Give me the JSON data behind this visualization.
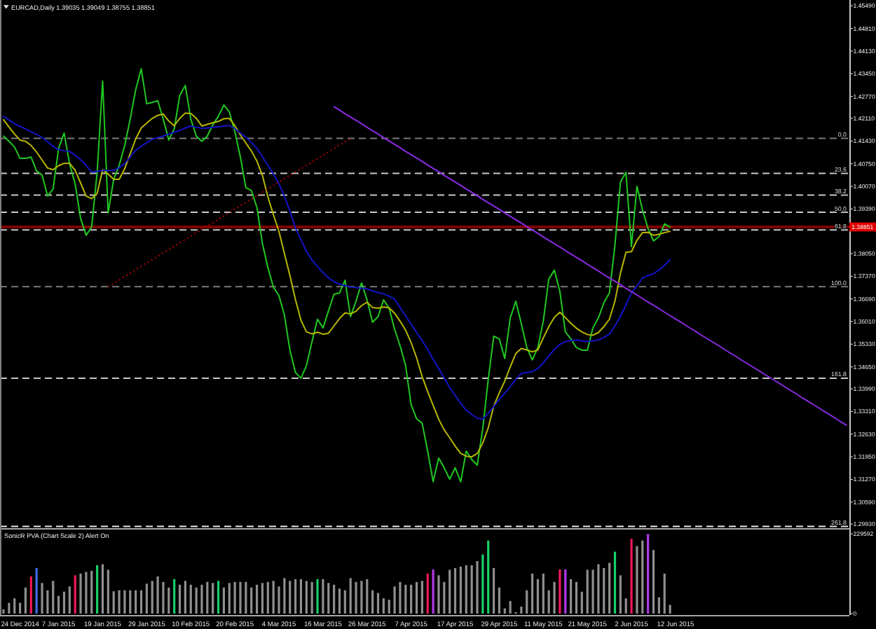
{
  "chart_data": [
    {
      "type": "line",
      "title": "EURCAD,Daily 1.39035 1.39049 1.38755 1.38851",
      "tick_labels": "y",
      "categories": [
        null,
        null,
        null,
        null,
        null,
        null,
        null,
        null,
        null,
        null,
        null,
        null,
        null,
        null,
        null,
        null,
        null,
        null,
        null,
        null,
        null,
        null,
        null,
        null,
        null,
        null,
        null,
        null,
        null,
        null,
        null,
        null,
        null,
        null,
        null,
        null,
        null,
        null,
        null,
        null,
        null,
        null,
        null,
        null,
        null,
        null,
        null,
        null,
        null,
        null,
        null,
        null,
        null,
        null,
        null,
        null,
        null,
        null,
        null,
        null,
        null,
        null,
        null,
        null,
        null,
        null,
        null,
        null,
        null,
        null,
        null,
        null,
        null,
        null,
        null,
        null,
        null,
        null,
        null,
        null,
        null,
        null,
        null,
        null,
        null,
        null,
        null,
        null,
        null,
        null,
        null,
        null,
        null,
        null,
        null,
        null,
        null,
        null,
        null,
        null,
        null,
        null,
        null,
        null,
        null,
        null,
        null,
        null,
        null,
        null,
        null,
        null,
        null,
        null,
        null,
        null,
        null,
        null,
        null,
        null,
        null,
        null,
        null,
        null,
        null,
        null,
        null,
        null,
        null,
        null,
        null,
        null,
        null,
        null,
        null,
        null,
        null,
        null,
        null,
        null,
        null,
        null,
        null,
        null,
        null,
        null,
        null,
        null,
        null,
        null,
        null,
        null,
        null,
        null
      ],
      "series": [
        {
          "color": "#20c820",
          "values": [
            1.4158,
            1.4142,
            1.4125,
            1.4091,
            1.4091,
            1.4095,
            1.4053,
            1.4041,
            1.3978,
            1.3999,
            1.4121,
            1.4167,
            1.4074,
            1.4015,
            1.391,
            1.386,
            1.3885,
            1.4049,
            1.4323,
            1.3927,
            1.4028,
            1.407,
            1.4129,
            1.4209,
            1.4297,
            1.436,
            1.4255,
            1.4259,
            1.4264,
            1.4209,
            1.4146,
            1.418,
            1.428,
            1.431,
            1.4209,
            1.4158,
            1.4142,
            1.4158,
            1.4192,
            1.4217,
            1.4251,
            1.423,
            1.4171,
            1.4095,
            1.4003,
            1.3994,
            1.3944,
            1.3835,
            1.3763,
            1.3704,
            1.3679,
            1.362,
            1.3515,
            1.3448,
            1.3431,
            1.3469,
            1.354,
            1.3608,
            1.3582,
            1.3633,
            1.3683,
            1.3687,
            1.3725,
            1.3616,
            1.3662,
            1.3717,
            1.3666,
            1.3599,
            1.3616,
            1.3666,
            1.3641,
            1.3578,
            1.3528,
            1.3469,
            1.3351,
            1.3309,
            1.3296,
            1.3212,
            1.312,
            1.3191,
            1.3162,
            1.3128,
            1.3162,
            1.312,
            1.3212,
            1.3187,
            1.317,
            1.3279,
            1.3427,
            1.3557,
            1.3549,
            1.349,
            1.3612,
            1.3662,
            1.3595,
            1.3523,
            1.3486,
            1.3523,
            1.3603,
            1.3729,
            1.3755,
            1.3692,
            1.357,
            1.3549,
            1.3523,
            1.3515,
            1.3515,
            1.3582,
            1.3612,
            1.3658,
            1.3687,
            1.383,
            1.402,
            1.4049,
            1.3826,
            1.4007,
            1.3936,
            1.3881,
            1.3843,
            1.3856,
            1.3894,
            1.3885,
            null,
            null,
            null,
            null,
            null,
            null,
            null,
            null,
            null,
            null,
            null,
            null,
            null,
            null,
            null,
            null,
            null,
            null,
            null,
            null,
            null,
            null,
            null,
            null,
            null,
            null,
            null,
            null,
            null,
            null,
            null,
            null
          ]
        },
        {
          "color": "#b8b800",
          "values": [
            1.4207,
            1.4185,
            1.4164,
            1.4146,
            1.4142,
            1.413,
            1.411,
            1.4086,
            1.4062,
            1.4057,
            1.4069,
            1.4076,
            1.4076,
            1.4055,
            1.4017,
            1.3978,
            1.397,
            1.3986,
            1.4057,
            1.4044,
            1.4028,
            1.4028,
            1.406,
            1.4105,
            1.4149,
            1.4182,
            1.4197,
            1.4211,
            1.422,
            1.4224,
            1.4203,
            1.4189,
            1.4211,
            1.4227,
            1.4226,
            1.4211,
            1.4188,
            1.4193,
            1.4198,
            1.4202,
            1.421,
            1.4211,
            1.4189,
            1.4161,
            1.4137,
            1.4113,
            1.4083,
            1.404,
            1.3975,
            1.3922,
            1.3872,
            1.3805,
            1.3739,
            1.3667,
            1.3605,
            1.357,
            1.3564,
            1.3569,
            1.3563,
            1.3566,
            1.3588,
            1.361,
            1.3627,
            1.3624,
            1.3632,
            1.3649,
            1.3659,
            1.3643,
            1.3641,
            1.3645,
            1.3642,
            1.3626,
            1.3602,
            1.3575,
            1.3538,
            1.3492,
            1.3436,
            1.3391,
            1.3349,
            1.3308,
            1.3276,
            1.3252,
            1.3227,
            1.3205,
            1.3197,
            1.3195,
            1.3205,
            1.3236,
            1.3282,
            1.3347,
            1.3387,
            1.3422,
            1.3465,
            1.3505,
            1.352,
            1.3516,
            1.351,
            1.3516,
            1.3552,
            1.3586,
            1.3614,
            1.3629,
            1.3613,
            1.3596,
            1.3581,
            1.357,
            1.3562,
            1.356,
            1.3568,
            1.3586,
            1.3608,
            1.3662,
            1.3746,
            1.3809,
            1.3811,
            1.3845,
            1.3868,
            1.3869,
            1.386,
            1.3863,
            1.3868,
            1.3872,
            null,
            null,
            null,
            null,
            null,
            null,
            null,
            null,
            null,
            null,
            null,
            null,
            null,
            null,
            null,
            null,
            null,
            null,
            null,
            null,
            null,
            null,
            null,
            null,
            null,
            null,
            null,
            null,
            null,
            null,
            null,
            null
          ]
        },
        {
          "color": "#1414c8",
          "values": [
            1.4217,
            1.4206,
            1.4195,
            1.4187,
            1.4179,
            1.4171,
            1.4163,
            1.4154,
            1.4141,
            1.4127,
            1.4117,
            1.4114,
            1.4112,
            1.4101,
            1.4087,
            1.407,
            1.405,
            1.4052,
            1.4055,
            1.4055,
            1.4055,
            1.4063,
            1.4075,
            1.4095,
            1.4115,
            1.4127,
            1.4138,
            1.4148,
            1.4153,
            1.4158,
            1.4164,
            1.4169,
            1.4175,
            1.4182,
            1.4188,
            1.4185,
            1.4181,
            1.4182,
            1.4184,
            1.4186,
            1.4188,
            1.419,
            1.418,
            1.4167,
            1.4155,
            1.4139,
            1.4121,
            1.4096,
            1.407,
            1.4044,
            1.4015,
            1.3977,
            1.3932,
            1.3882,
            1.3847,
            1.3811,
            1.3786,
            1.3766,
            1.3749,
            1.3732,
            1.3721,
            1.3713,
            1.3709,
            1.3705,
            1.3703,
            1.3701,
            1.3699,
            1.3693,
            1.3688,
            1.3684,
            1.3677,
            1.3668,
            1.3643,
            1.3618,
            1.3593,
            1.3568,
            1.3544,
            1.3517,
            1.3488,
            1.346,
            1.3432,
            1.3403,
            1.3379,
            1.3356,
            1.3335,
            1.3322,
            1.3311,
            1.3308,
            1.3326,
            1.3346,
            1.3367,
            1.3386,
            1.3406,
            1.3427,
            1.3445,
            1.3448,
            1.3451,
            1.346,
            1.3477,
            1.3498,
            1.3517,
            1.3532,
            1.3541,
            1.3544,
            1.3546,
            1.3543,
            1.3541,
            1.3543,
            1.3546,
            1.3553,
            1.3564,
            1.3588,
            1.3617,
            1.3651,
            1.3687,
            1.3708,
            1.3732,
            1.3739,
            1.3745,
            1.3756,
            1.377,
            1.3787,
            null,
            null,
            null,
            null,
            null,
            null,
            null,
            null,
            null,
            null,
            null,
            null,
            null,
            null,
            null,
            null,
            null,
            null,
            null,
            null,
            null,
            null,
            null,
            null,
            null,
            null,
            null,
            null,
            null,
            null,
            null,
            null
          ]
        },
        {
          "color": "#8a2be2",
          "values": [
            null,
            null,
            null,
            null,
            null,
            null,
            null,
            null,
            null,
            null,
            null,
            null,
            null,
            null,
            null,
            null,
            null,
            null,
            null,
            null,
            null,
            null,
            null,
            null,
            null,
            null,
            null,
            null,
            null,
            null,
            null,
            null,
            null,
            null,
            null,
            null,
            null,
            null,
            null,
            null,
            null,
            null,
            null,
            null,
            null,
            null,
            null,
            null,
            null,
            null,
            null,
            null,
            null,
            null,
            null,
            null,
            null,
            null,
            null,
            null,
            1.4246,
            1.4236,
            1.4225,
            1.4215,
            1.4205,
            1.4195,
            1.4184,
            1.4174,
            1.4164,
            1.4153,
            1.4143,
            1.4133,
            1.4123,
            1.4112,
            1.4102,
            1.4092,
            1.4082,
            1.4071,
            1.4061,
            1.4051,
            1.404,
            1.403,
            1.402,
            1.401,
            1.3999,
            1.3989,
            1.3979,
            1.3968,
            1.3958,
            1.3948,
            1.3938,
            1.3927,
            1.3917,
            1.3907,
            1.3897,
            1.3886,
            1.3876,
            1.3866,
            1.3855,
            1.3845,
            1.3835,
            1.3825,
            1.3814,
            1.3804,
            1.3794,
            1.3784,
            1.3773,
            1.3763,
            1.3753,
            1.3742,
            1.3732,
            1.3722,
            1.3712,
            1.3701,
            1.3691,
            1.3681,
            1.367,
            1.366,
            1.365,
            1.364,
            1.3629,
            1.3619,
            1.3609,
            1.3599,
            1.3588,
            1.3578,
            1.3568,
            1.3557,
            1.3547,
            1.3537,
            1.3527,
            1.3516,
            1.3506,
            1.3496,
            1.3485,
            1.3475,
            1.3465,
            1.3455,
            1.3444,
            1.3434,
            1.3424,
            1.3414,
            1.3403,
            1.3393,
            1.3383,
            1.3372,
            1.3362,
            1.3352,
            1.3342,
            1.3331,
            1.3321,
            1.3311,
            1.33,
            1.329
          ]
        },
        {
          "color": "#b00000",
          "line_style": "dotted",
          "values": [
            null,
            null,
            null,
            null,
            null,
            null,
            null,
            null,
            null,
            null,
            null,
            null,
            null,
            null,
            null,
            null,
            null,
            null,
            null,
            1.3706,
            1.3716,
            1.3726,
            1.3736,
            1.3746,
            1.3757,
            1.3767,
            1.3777,
            1.3787,
            1.3797,
            1.3807,
            1.3817,
            1.3827,
            1.3837,
            1.3848,
            1.3858,
            1.3868,
            1.3878,
            1.3888,
            1.3898,
            1.3908,
            1.3918,
            1.3929,
            1.3939,
            1.3949,
            1.3959,
            1.3969,
            1.3979,
            1.3989,
            1.3999,
            1.4009,
            1.402,
            1.403,
            1.404,
            1.405,
            1.406,
            1.407,
            1.408,
            1.409,
            1.41,
            1.4111,
            1.4121,
            1.4131,
            1.4141,
            1.4151,
            null,
            null,
            null,
            null,
            null,
            null,
            null,
            null,
            null,
            null,
            null,
            null,
            null,
            null,
            null,
            null,
            null,
            null,
            null,
            null,
            null,
            null,
            null,
            null,
            null,
            null,
            null,
            null,
            null,
            null,
            null,
            null,
            null,
            null,
            null,
            null,
            null,
            null,
            null,
            null,
            null,
            null,
            null,
            null,
            null,
            null,
            null,
            null,
            null,
            null,
            null,
            null,
            null,
            null,
            null,
            null,
            null,
            null,
            null,
            null,
            null,
            null,
            null,
            null,
            null,
            null,
            null,
            null,
            null,
            null,
            null,
            null,
            null,
            null,
            null,
            null,
            null,
            null,
            null,
            null,
            null,
            null,
            null,
            null,
            null,
            null,
            null,
            null,
            null,
            null
          ]
        }
      ],
      "ylim": [
        1.2985,
        1.4558
      ],
      "yticks": [
        {
          "value": 1.4549,
          "label": "1.45490"
        },
        {
          "value": 1.4481,
          "label": "1.44810"
        },
        {
          "value": 1.4413,
          "label": "1.44130"
        },
        {
          "value": 1.4345,
          "label": "1.43450"
        },
        {
          "value": 1.4277,
          "label": "1.42770"
        },
        {
          "value": 1.4211,
          "label": "1.42110"
        },
        {
          "value": 1.4143,
          "label": "1.41430"
        },
        {
          "value": 1.4075,
          "label": "1.40750"
        },
        {
          "value": 1.4007,
          "label": "1.40070"
        },
        {
          "value": 1.3939,
          "label": "1.39390"
        },
        {
          "value": 1.3805,
          "label": "1.38050"
        },
        {
          "value": 1.3737,
          "label": "1.37370"
        },
        {
          "value": 1.3669,
          "label": "1.36690"
        },
        {
          "value": 1.3601,
          "label": "1.36010"
        },
        {
          "value": 1.3533,
          "label": "1.35330"
        },
        {
          "value": 1.3465,
          "label": "1.34650"
        },
        {
          "value": 1.3399,
          "label": "1.33990"
        },
        {
          "value": 1.3331,
          "label": "1.33310"
        },
        {
          "value": 1.3263,
          "label": "1.32630"
        },
        {
          "value": 1.3195,
          "label": "1.31950"
        },
        {
          "value": 1.3127,
          "label": "1.31270"
        },
        {
          "value": 1.3059,
          "label": "1.30590"
        },
        {
          "value": 1.2993,
          "label": "1.29930"
        }
      ],
      "ref_lines": [
        {
          "axis": "y",
          "value": 1.4151,
          "color": "#7a7a7a",
          "line_style": "dashed"
        },
        {
          "axis": "y",
          "value": 1.4046,
          "color": "#c8c8c8",
          "line_style": "dashed"
        },
        {
          "axis": "y",
          "value": 1.3981,
          "color": "#c8c8c8",
          "line_style": "dashed"
        },
        {
          "axis": "y",
          "value": 1.3929,
          "color": "#c8c8c8",
          "line_style": "dashed"
        },
        {
          "axis": "y",
          "value": 1.3876,
          "color": "#c8c8c8",
          "line_style": "dashed"
        },
        {
          "axis": "y",
          "value": 1.3706,
          "color": "#7a7a7a",
          "line_style": "dashed"
        },
        {
          "axis": "y",
          "value": 1.3431,
          "color": "#c8c8c8",
          "line_style": "dashed"
        },
        {
          "axis": "y",
          "value": 1.2986,
          "color": "#e8e8e8",
          "line_style": "dashed"
        },
        {
          "axis": "y",
          "value": 1.38851,
          "label": "1.38851",
          "color": "#800000",
          "line_style": "solid"
        }
      ],
      "annotations": [
        {
          "text": "0.0",
          "y": 1.4151
        },
        {
          "text": "23.6",
          "y": 1.4046
        },
        {
          "text": "38.2",
          "y": 1.3981
        },
        {
          "text": "50.0",
          "y": 1.3929
        },
        {
          "text": "61.8",
          "y": 1.3876
        },
        {
          "text": "100.0",
          "y": 1.3706
        },
        {
          "text": "161.8",
          "y": 1.3431
        },
        {
          "text": "261.8",
          "y": 1.2986
        }
      ]
    },
    {
      "type": "bar",
      "title": "SonicR PVA (Chart Scale 2) Alert On",
      "categories": [
        null,
        null,
        null,
        "24 Dec 2014",
        null,
        null,
        null,
        null,
        null,
        null,
        "7 Jan 2015",
        null,
        null,
        null,
        null,
        null,
        null,
        null,
        "19 Jan 2015",
        null,
        null,
        null,
        null,
        null,
        null,
        null,
        "29 Jan 2015",
        null,
        null,
        null,
        null,
        null,
        null,
        null,
        "10 Feb 2015",
        null,
        null,
        null,
        null,
        null,
        null,
        null,
        "20 Feb 2015",
        null,
        null,
        null,
        null,
        null,
        null,
        null,
        "4 Mar 2015",
        null,
        null,
        null,
        null,
        null,
        null,
        null,
        "16 Mar 2015",
        null,
        null,
        null,
        null,
        null,
        null,
        null,
        "26 Mar 2015",
        null,
        null,
        null,
        null,
        null,
        null,
        null,
        "7 Apr 2015",
        null,
        null,
        null,
        null,
        null,
        null,
        null,
        "17 Apr 2015",
        null,
        null,
        null,
        null,
        null,
        null,
        null,
        "29 Apr 2015",
        null,
        null,
        null,
        null,
        null,
        null,
        null,
        "11 May 2015",
        null,
        null,
        null,
        null,
        null,
        null,
        null,
        "21 May 2015",
        null,
        null,
        null,
        null,
        null,
        null,
        null,
        "2 Jun 2015",
        null,
        null,
        null,
        null,
        null,
        null,
        null,
        "12 Jun 2015",
        null,
        null,
        null,
        null,
        null,
        null,
        null,
        null,
        null,
        null,
        null,
        null,
        null,
        null,
        null,
        null,
        null,
        null,
        null,
        null,
        null,
        null,
        null,
        null,
        null,
        null,
        null,
        null,
        null,
        null,
        null
      ],
      "values": [
        12000,
        31000,
        44000,
        31000,
        75000,
        107000,
        131000,
        88000,
        67000,
        94000,
        51000,
        63000,
        78000,
        110000,
        115000,
        120000,
        123000,
        139000,
        142000,
        126000,
        64000,
        67000,
        67000,
        67000,
        67000,
        67000,
        86000,
        94000,
        107000,
        91000,
        75000,
        99000,
        83000,
        94000,
        83000,
        75000,
        83000,
        91000,
        88000,
        94000,
        75000,
        88000,
        91000,
        91000,
        91000,
        75000,
        83000,
        88000,
        91000,
        94000,
        78000,
        102000,
        94000,
        99000,
        99000,
        94000,
        91000,
        99000,
        99000,
        88000,
        83000,
        72000,
        67000,
        102000,
        91000,
        94000,
        99000,
        67000,
        59000,
        44000,
        40000,
        78000,
        91000,
        83000,
        83000,
        91000,
        94000,
        115000,
        127000,
        110000,
        91000,
        126000,
        131000,
        135000,
        139000,
        139000,
        151000,
        170000,
        210000,
        131000,
        75000,
        15000,
        36000,
        4000,
        20000,
        67000,
        115000,
        99000,
        115000,
        67000,
        91000,
        127000,
        127000,
        99000,
        91000,
        63000,
        126000,
        126000,
        142000,
        131000,
        146000,
        178000,
        110000,
        44000,
        215000,
        194000,
        210000,
        229000,
        183000,
        47000,
        115000,
        25000,
        null,
        null,
        null,
        null,
        null,
        null,
        null,
        null,
        null,
        null,
        null,
        null,
        null,
        null,
        null,
        null,
        null,
        null,
        null,
        null,
        null,
        null,
        null,
        null,
        null,
        null,
        null,
        null,
        null,
        null,
        null,
        null
      ],
      "colors": [
        "#8f8f8f",
        "#8f8f8f",
        "#8f8f8f",
        "#8f8f8f",
        "#8f8f8f",
        "#f0185a",
        "#3d6ee0",
        "#8f8f8f",
        "#8f8f8f",
        "#8f8f8f",
        "#8f8f8f",
        "#8f8f8f",
        "#8f8f8f",
        "#f0185a",
        "#8f8f8f",
        "#8f8f8f",
        "#8f8f8f",
        "#18d068",
        "#8f8f8f",
        "#8f8f8f",
        "#8f8f8f",
        "#8f8f8f",
        "#8f8f8f",
        "#8f8f8f",
        "#8f8f8f",
        "#8f8f8f",
        "#8f8f8f",
        "#8f8f8f",
        "#8f8f8f",
        "#8f8f8f",
        "#8f8f8f",
        "#18d068",
        "#8f8f8f",
        "#8f8f8f",
        "#8f8f8f",
        "#8f8f8f",
        "#8f8f8f",
        "#8f8f8f",
        "#8f8f8f",
        "#18d068",
        "#8f8f8f",
        "#8f8f8f",
        "#8f8f8f",
        "#8f8f8f",
        "#8f8f8f",
        "#8f8f8f",
        "#8f8f8f",
        "#8f8f8f",
        "#8f8f8f",
        "#8f8f8f",
        "#8f8f8f",
        "#8f8f8f",
        "#8f8f8f",
        "#8f8f8f",
        "#8f8f8f",
        "#8f8f8f",
        "#8f8f8f",
        "#18d068",
        "#8f8f8f",
        "#8f8f8f",
        "#8f8f8f",
        "#8f8f8f",
        "#8f8f8f",
        "#8f8f8f",
        "#8f8f8f",
        "#8f8f8f",
        "#8f8f8f",
        "#8f8f8f",
        "#8f8f8f",
        "#8f8f8f",
        "#8f8f8f",
        "#8f8f8f",
        "#8f8f8f",
        "#8f8f8f",
        "#8f8f8f",
        "#8f8f8f",
        "#8f8f8f",
        "#f0185a",
        "#b03ae8",
        "#8f8f8f",
        "#8f8f8f",
        "#8f8f8f",
        "#8f8f8f",
        "#8f8f8f",
        "#8f8f8f",
        "#8f8f8f",
        "#8f8f8f",
        "#18d068",
        "#18d068",
        "#8f8f8f",
        "#8f8f8f",
        "#8f8f8f",
        "#8f8f8f",
        "#8f8f8f",
        "#8f8f8f",
        "#8f8f8f",
        "#8f8f8f",
        "#8f8f8f",
        "#8f8f8f",
        "#8f8f8f",
        "#8f8f8f",
        "#f0185a",
        "#b03ae8",
        "#8f8f8f",
        "#8f8f8f",
        "#8f8f8f",
        "#8f8f8f",
        "#8f8f8f",
        "#8f8f8f",
        "#8f8f8f",
        "#8f8f8f",
        "#18d068",
        "#8f8f8f",
        "#8f8f8f",
        "#f0185a",
        "#8f8f8f",
        "#8f8f8f",
        "#b03ae8",
        "#8f8f8f",
        "#8f8f8f",
        "#8f8f8f",
        "#8f8f8f",
        null,
        null,
        null,
        null,
        null,
        null,
        null,
        null,
        null,
        null,
        null,
        null,
        null,
        null,
        null,
        null,
        null,
        null,
        null,
        null,
        null,
        null,
        null,
        null,
        null,
        null,
        null,
        null,
        null,
        null,
        null,
        null
      ],
      "ylim": [
        0,
        229592
      ],
      "yticks": [
        229592,
        0
      ]
    }
  ]
}
